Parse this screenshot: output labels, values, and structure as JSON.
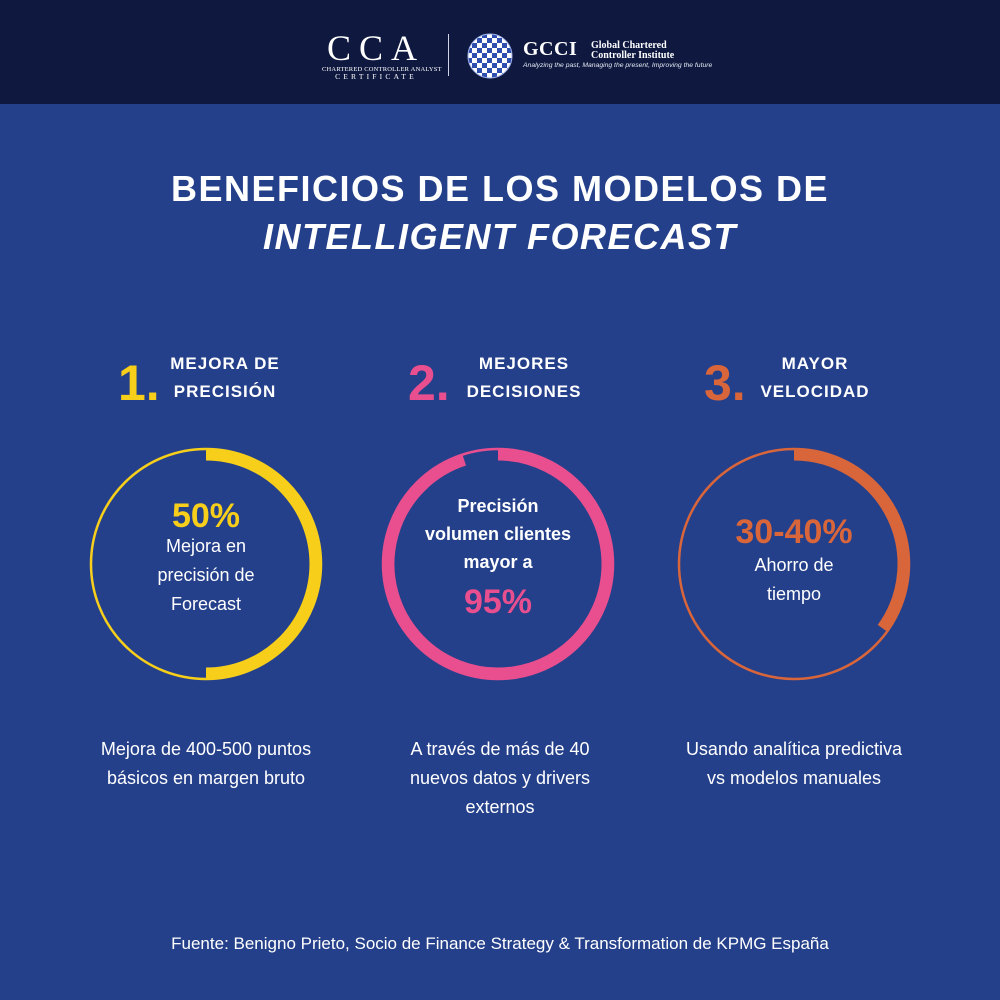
{
  "header": {
    "cca_logo": {
      "letters": "CCA",
      "line1": "CHARTERED CONTROLLER ANALYST",
      "line2": "CERTIFICATE"
    },
    "gcci_logo": {
      "name": "GCCI",
      "full_name": "Global Chartered Controller Institute",
      "tagline": "Analyzing the past, Managing the present, Improving the future"
    }
  },
  "title": {
    "line1": "BENEFICIOS DE LOS MODELOS DE",
    "line2": "INTELLIGENT FORECAST"
  },
  "columns": [
    {
      "number": "1.",
      "title_line1": "MEJORA DE",
      "title_line2": "PRECISIÓN",
      "color": "#f7cf1b",
      "percent_value": 50,
      "stat": "50%",
      "circle_text": [
        "Mejora en",
        "precisión de",
        "Forecast"
      ],
      "desc": [
        "Mejora de 400-500 puntos",
        "básicos en margen bruto"
      ]
    },
    {
      "number": "2.",
      "title_line1": "MEJORES",
      "title_line2": "DECISIONES",
      "color": "#e94f8e",
      "percent_value": 95,
      "stat": "95%",
      "circle_text": [
        "Precisión",
        "volumen clientes",
        "mayor a"
      ],
      "desc": [
        "A través de más de 40",
        "nuevos datos y drivers",
        "externos"
      ]
    },
    {
      "number": "3.",
      "title_line1": "MAYOR",
      "title_line2": "VELOCIDAD",
      "color": "#d9663a",
      "percent_value": 35,
      "stat": "30-40%",
      "circle_text": [
        "Ahorro de",
        "tiempo"
      ],
      "desc": [
        "Usando analítica predictiva",
        "vs modelos manuales"
      ]
    }
  ],
  "source": "Fuente: Benigno Prieto, Socio de Finance Strategy & Transformation de KPMG España"
}
